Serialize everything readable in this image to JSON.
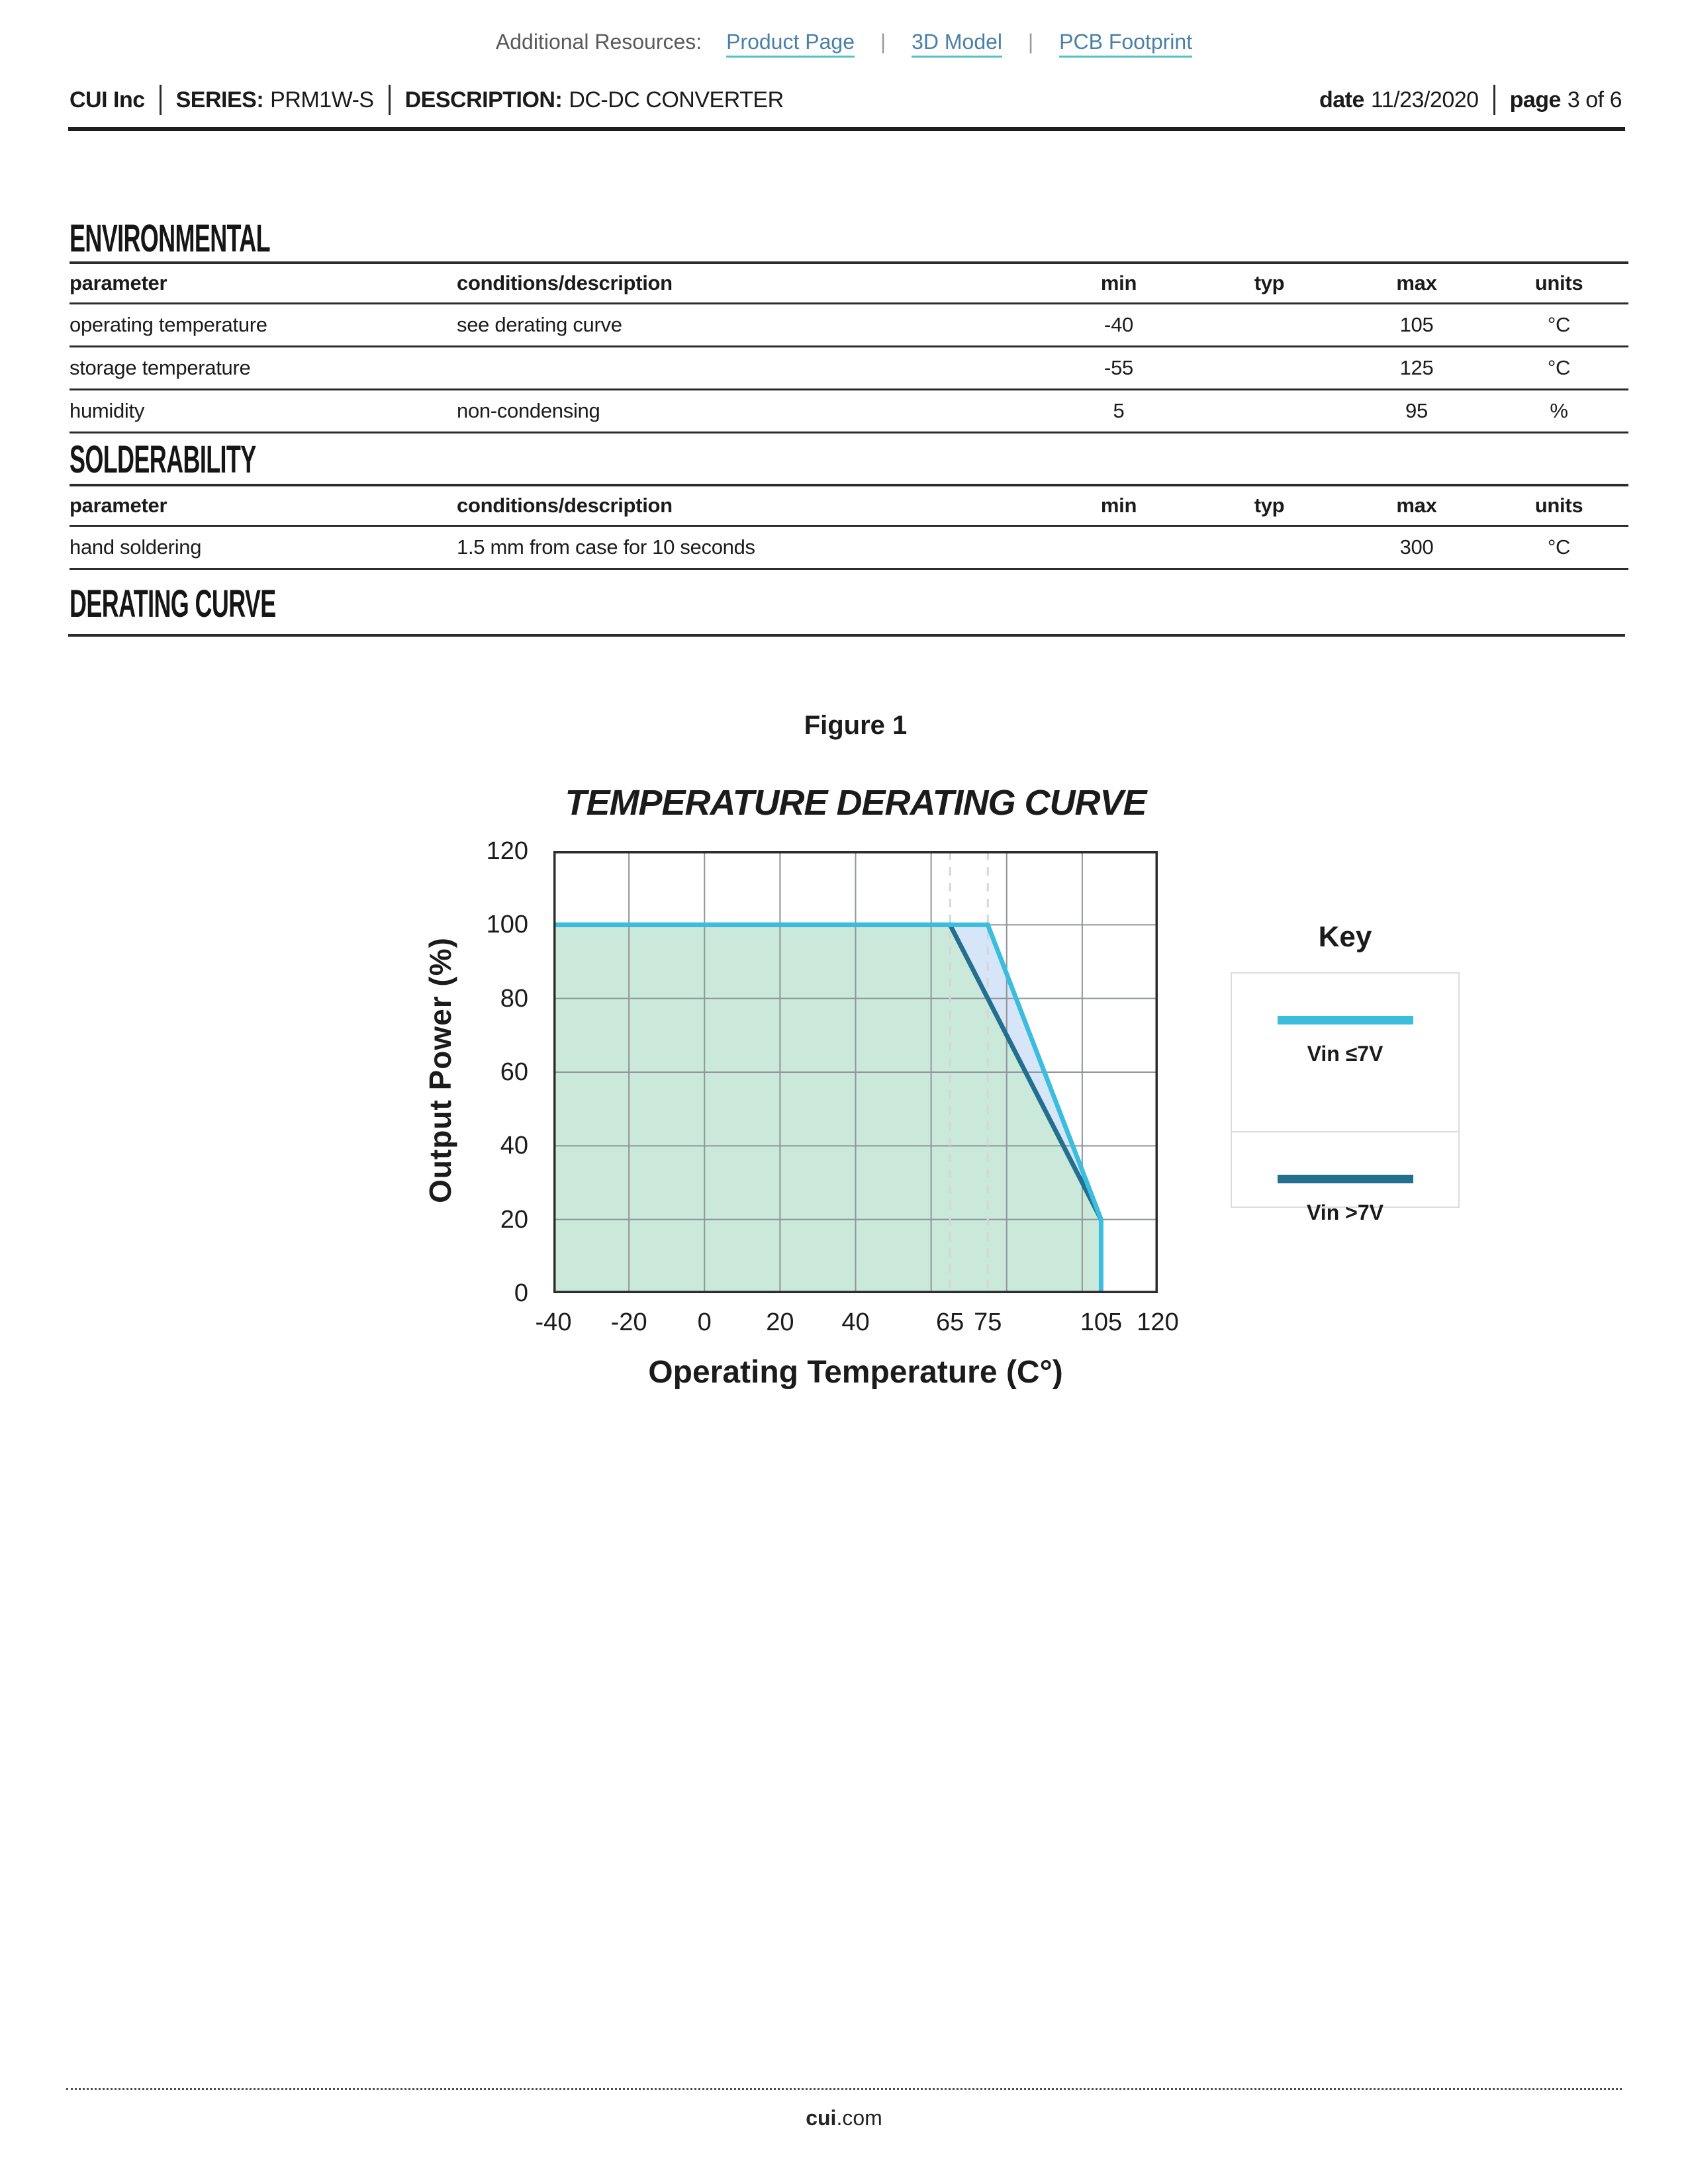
{
  "resources": {
    "label": "Additional Resources:",
    "separator": "|",
    "links": [
      "Product Page",
      "3D Model",
      "PCB Footprint"
    ]
  },
  "header": {
    "company": "CUI Inc",
    "series_label": "SERIES:",
    "series": "PRM1W-S",
    "description_label": "DESCRIPTION:",
    "description": "DC-DC CONVERTER",
    "date_label": "date",
    "date": "11/23/2020",
    "page_label": "page",
    "page": "3 of 6"
  },
  "env": {
    "title": "ENVIRONMENTAL",
    "columns": {
      "parameter": "parameter",
      "conditions": "conditions/description",
      "min": "min",
      "typ": "typ",
      "max": "max",
      "units": "units"
    },
    "rows": [
      {
        "parameter": "operating temperature",
        "conditions": "see derating curve",
        "min": "-40",
        "typ": "",
        "max": "105",
        "units": "°C"
      },
      {
        "parameter": "storage temperature",
        "conditions": "",
        "min": "-55",
        "typ": "",
        "max": "125",
        "units": "°C"
      },
      {
        "parameter": "humidity",
        "conditions": "non-condensing",
        "min": "5",
        "typ": "",
        "max": "95",
        "units": "%"
      }
    ]
  },
  "sold": {
    "title": "SOLDERABILITY",
    "columns": {
      "parameter": "parameter",
      "conditions": "conditions/description",
      "min": "min",
      "typ": "typ",
      "max": "max",
      "units": "units"
    },
    "rows": [
      {
        "parameter": "hand soldering",
        "conditions": "1.5 mm from case for 10 seconds",
        "min": "",
        "typ": "",
        "max": "300",
        "units": "°C"
      }
    ]
  },
  "derating_title": "DERATING CURVE",
  "figure": {
    "label": "Figure 1"
  },
  "key": {
    "title": "Key"
  },
  "chart_data": {
    "type": "area",
    "title": "TEMPERATURE DERATING CURVE",
    "figure_label": "Figure 1",
    "xlabel": "Operating Temperature (C°)",
    "ylabel": "Output Power (%)",
    "xlim": [
      -40,
      120
    ],
    "ylim": [
      0,
      120
    ],
    "grid": true,
    "grid_step": 20,
    "grid_color": "#8f9499",
    "guide_color": "#d3d7d9",
    "frame_color": "#2d2d2d",
    "x_ticks": [
      -40,
      -20,
      0,
      20,
      40,
      65,
      75,
      105,
      120
    ],
    "y_ticks": [
      0,
      20,
      40,
      60,
      80,
      100,
      120
    ],
    "dashed_guides_x": [
      65,
      75
    ],
    "legend_position": "right",
    "series": [
      {
        "name": "Vin ≤7V",
        "color": "#3bbdde",
        "width": 7,
        "points": [
          [
            -40,
            100
          ],
          [
            75,
            100
          ],
          [
            105,
            20
          ],
          [
            105,
            0
          ]
        ]
      },
      {
        "name": "Vin >7V",
        "color": "#226f8e",
        "width": 7,
        "points": [
          [
            -40,
            100
          ],
          [
            65,
            100
          ],
          [
            105,
            20
          ]
        ]
      }
    ],
    "fills": [
      {
        "series_index": 0,
        "color": "#d7e5f8"
      },
      {
        "series_index": 1,
        "color": "#cbe9da"
      }
    ]
  },
  "footer": {
    "brand": "cui",
    "suffix": ".com"
  }
}
